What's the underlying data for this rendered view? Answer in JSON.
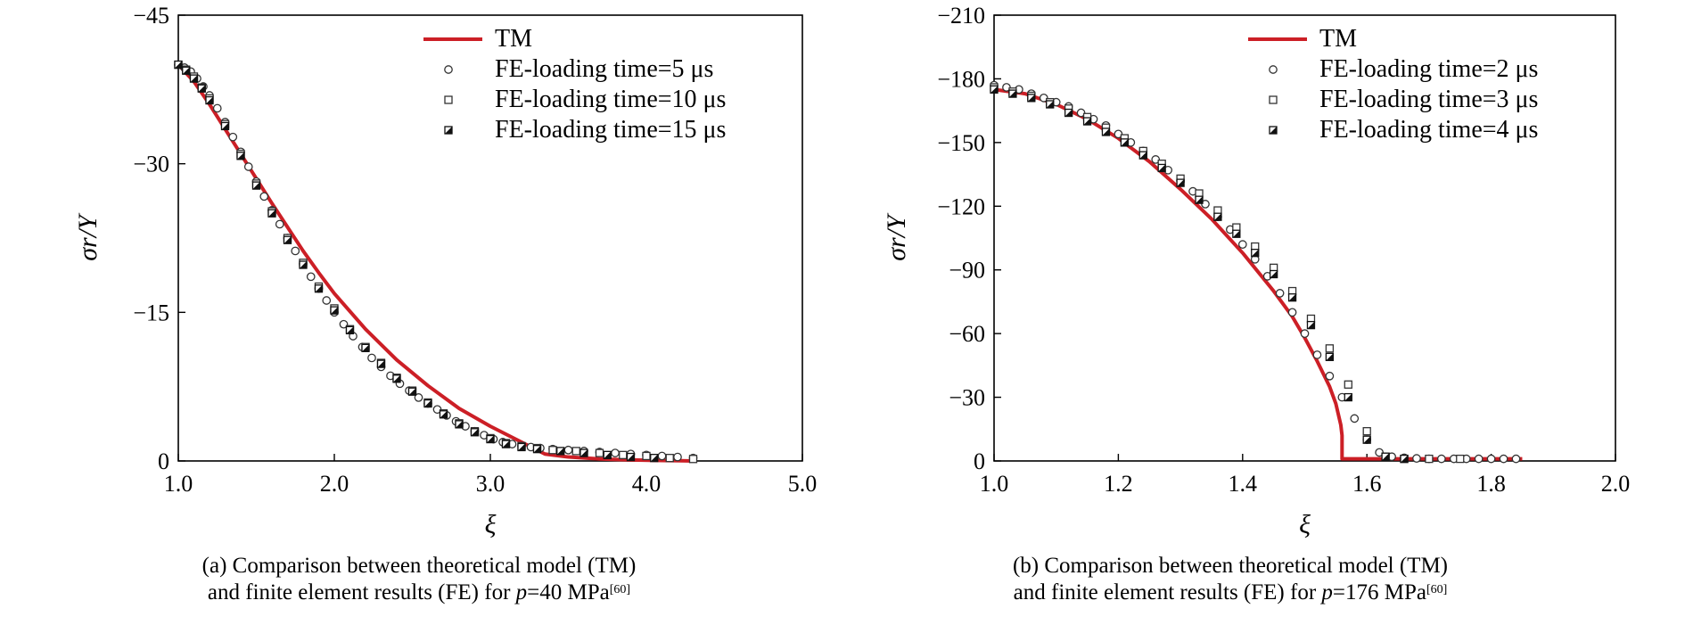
{
  "chart_data": [
    {
      "type": "scatter",
      "panel": "a",
      "ylabel": "σr/Y",
      "xlabel": "ξ",
      "xlim": [
        1.0,
        5.0
      ],
      "ylim": [
        0,
        -45
      ],
      "xticks": [
        "1.0",
        "2.0",
        "3.0",
        "4.0",
        "5.0"
      ],
      "yticks": [
        "0",
        "−15",
        "−30",
        "−45"
      ],
      "legend_position": "top-right",
      "series": [
        {
          "name": "TM",
          "kind": "line",
          "color": "#cc1f26",
          "x": [
            1.0,
            1.1,
            1.2,
            1.3,
            1.4,
            1.5,
            1.6,
            1.7,
            1.8,
            1.9,
            2.0,
            2.2,
            2.4,
            2.6,
            2.8,
            3.0,
            3.2,
            3.35,
            3.5,
            3.7,
            3.9,
            4.1,
            4.3
          ],
          "y": [
            -40,
            -38.3,
            -36.0,
            -33.5,
            -31.0,
            -28.5,
            -26.0,
            -23.6,
            -21.2,
            -19.0,
            -16.9,
            -13.3,
            -10.2,
            -7.6,
            -5.3,
            -3.5,
            -1.9,
            -0.7,
            -0.4,
            -0.2,
            -0.1,
            -0.05,
            0
          ]
        },
        {
          "name": "FE-loading time=5 μs",
          "kind": "markers",
          "marker": "open-circle",
          "x": [
            1.0,
            1.04,
            1.08,
            1.12,
            1.16,
            1.2,
            1.25,
            1.3,
            1.35,
            1.4,
            1.45,
            1.5,
            1.55,
            1.6,
            1.65,
            1.7,
            1.75,
            1.8,
            1.85,
            1.9,
            1.95,
            2.0,
            2.06,
            2.12,
            2.18,
            2.24,
            2.3,
            2.36,
            2.42,
            2.48,
            2.54,
            2.6,
            2.66,
            2.72,
            2.78,
            2.84,
            2.9,
            2.96,
            3.02,
            3.08,
            3.14,
            3.2,
            3.26,
            3.32,
            3.4,
            3.5,
            3.6,
            3.7,
            3.8,
            3.9,
            4.0,
            4.1,
            4.2,
            4.3
          ],
          "y": [
            -40,
            -39.7,
            -39.3,
            -38.6,
            -37.8,
            -36.9,
            -35.6,
            -34.2,
            -32.7,
            -31.2,
            -29.7,
            -28.2,
            -26.7,
            -25.3,
            -23.9,
            -22.5,
            -21.2,
            -19.9,
            -18.6,
            -17.4,
            -16.2,
            -15.0,
            -13.8,
            -12.6,
            -11.5,
            -10.4,
            -9.5,
            -8.6,
            -7.8,
            -7.1,
            -6.4,
            -5.8,
            -5.2,
            -4.6,
            -4.0,
            -3.5,
            -3.0,
            -2.6,
            -2.2,
            -1.9,
            -1.7,
            -1.5,
            -1.4,
            -1.3,
            -1.2,
            -1.1,
            -1.0,
            -0.9,
            -0.8,
            -0.7,
            -0.6,
            -0.5,
            -0.4,
            -0.3
          ]
        },
        {
          "name": "FE-loading time=10 μs",
          "kind": "markers",
          "marker": "open-square",
          "x": [
            1.0,
            1.05,
            1.1,
            1.15,
            1.2,
            1.3,
            1.4,
            1.5,
            1.6,
            1.7,
            1.8,
            1.9,
            2.0,
            2.1,
            2.2,
            2.3,
            2.4,
            2.5,
            2.6,
            2.7,
            2.8,
            2.9,
            3.0,
            3.1,
            3.2,
            3.3,
            3.4,
            3.55,
            3.7,
            3.85,
            4.0,
            4.15,
            4.3
          ],
          "y": [
            -40,
            -39.5,
            -38.8,
            -37.7,
            -36.6,
            -34.0,
            -31.0,
            -28.0,
            -25.2,
            -22.5,
            -20.0,
            -17.6,
            -15.4,
            -13.3,
            -11.5,
            -9.9,
            -8.4,
            -7.1,
            -5.9,
            -4.8,
            -3.8,
            -3.0,
            -2.3,
            -1.8,
            -1.5,
            -1.3,
            -1.1,
            -1.0,
            -0.8,
            -0.6,
            -0.5,
            -0.3,
            -0.2
          ]
        },
        {
          "name": "FE-loading time=15 μs",
          "kind": "markers",
          "marker": "half-filled-square",
          "x": [
            1.0,
            1.05,
            1.1,
            1.15,
            1.2,
            1.3,
            1.4,
            1.5,
            1.6,
            1.7,
            1.8,
            1.9,
            2.0,
            2.1,
            2.2,
            2.3,
            2.4,
            2.5,
            2.6,
            2.7,
            2.8,
            2.9,
            3.0,
            3.1,
            3.2,
            3.3,
            3.45,
            3.6,
            3.75,
            3.9,
            4.05
          ],
          "y": [
            -40,
            -39.4,
            -38.6,
            -37.6,
            -36.4,
            -33.8,
            -30.8,
            -27.8,
            -25.0,
            -22.3,
            -19.8,
            -17.4,
            -15.2,
            -13.2,
            -11.4,
            -9.8,
            -8.3,
            -7.0,
            -5.8,
            -4.7,
            -3.7,
            -2.9,
            -2.2,
            -1.7,
            -1.4,
            -1.2,
            -1.0,
            -0.8,
            -0.6,
            -0.4,
            -0.3
          ]
        }
      ]
    },
    {
      "type": "scatter",
      "panel": "b",
      "ylabel": "σr/Y",
      "xlabel": "ξ",
      "xlim": [
        1.0,
        2.0
      ],
      "ylim": [
        0,
        -210
      ],
      "xticks": [
        "1.0",
        "1.2",
        "1.4",
        "1.6",
        "1.8",
        "2.0"
      ],
      "yticks": [
        "0",
        "−30",
        "−60",
        "−90",
        "−120",
        "−150",
        "−180",
        "−210"
      ],
      "legend_position": "top-right",
      "series": [
        {
          "name": "TM",
          "kind": "line",
          "color": "#cc1f26",
          "x": [
            1.0,
            1.05,
            1.1,
            1.15,
            1.2,
            1.25,
            1.3,
            1.35,
            1.4,
            1.45,
            1.48,
            1.5,
            1.52,
            1.54,
            1.55,
            1.558,
            1.56,
            1.56,
            1.65,
            1.75,
            1.85
          ],
          "y": [
            -175,
            -173,
            -168,
            -161,
            -152,
            -141,
            -128,
            -114,
            -98,
            -80,
            -68,
            -58,
            -47,
            -35,
            -27,
            -17,
            -12,
            -1,
            -1,
            -1,
            -1
          ]
        },
        {
          "name": "FE-loading time=2 μs",
          "kind": "markers",
          "marker": "open-circle",
          "x": [
            1.0,
            1.02,
            1.04,
            1.06,
            1.08,
            1.1,
            1.12,
            1.14,
            1.16,
            1.18,
            1.2,
            1.22,
            1.24,
            1.26,
            1.28,
            1.3,
            1.32,
            1.34,
            1.36,
            1.38,
            1.4,
            1.42,
            1.44,
            1.46,
            1.48,
            1.5,
            1.52,
            1.54,
            1.56,
            1.58,
            1.6,
            1.62,
            1.64,
            1.66,
            1.68,
            1.7,
            1.72,
            1.74,
            1.76,
            1.78,
            1.8,
            1.82,
            1.84
          ],
          "y": [
            -177,
            -176,
            -175,
            -173,
            -171,
            -169,
            -167,
            -164,
            -161,
            -158,
            -154,
            -150,
            -146,
            -142,
            -137,
            -132,
            -127,
            -121,
            -115,
            -109,
            -102,
            -95,
            -87,
            -79,
            -70,
            -60,
            -50,
            -40,
            -30,
            -20,
            -10,
            -4,
            -2,
            -1.5,
            -1.2,
            -1,
            -1,
            -1,
            -1,
            -1,
            -1,
            -1,
            -1
          ]
        },
        {
          "name": "FE-loading time=3 μs",
          "kind": "markers",
          "marker": "open-square",
          "x": [
            1.0,
            1.03,
            1.06,
            1.09,
            1.12,
            1.15,
            1.18,
            1.21,
            1.24,
            1.27,
            1.3,
            1.33,
            1.36,
            1.39,
            1.42,
            1.45,
            1.48,
            1.51,
            1.54,
            1.57,
            1.6,
            1.63,
            1.66,
            1.7,
            1.75
          ],
          "y": [
            -176,
            -174,
            -172,
            -169,
            -166,
            -162,
            -157,
            -152,
            -146,
            -140,
            -133,
            -126,
            -118,
            -110,
            -101,
            -91,
            -80,
            -67,
            -53,
            -36,
            -14,
            -2,
            -1,
            -1,
            -1
          ]
        },
        {
          "name": "FE-loading time=4 μs",
          "kind": "markers",
          "marker": "half-filled-square",
          "x": [
            1.0,
            1.03,
            1.06,
            1.09,
            1.12,
            1.15,
            1.18,
            1.21,
            1.24,
            1.27,
            1.3,
            1.33,
            1.36,
            1.39,
            1.42,
            1.45,
            1.48,
            1.51,
            1.54,
            1.57,
            1.6,
            1.63,
            1.66
          ],
          "y": [
            -175,
            -173,
            -171,
            -168,
            -164,
            -160,
            -155,
            -150,
            -144,
            -138,
            -131,
            -123,
            -115,
            -107,
            -98,
            -88,
            -77,
            -64,
            -49,
            -30,
            -10,
            -2,
            -1
          ]
        }
      ]
    }
  ],
  "captions": {
    "a": {
      "line1": "(a) Comparison between theoretical model (TM)",
      "line2_pre": "and finite element results (FE) for ",
      "var": "p",
      "line2_post": "=40 MPa",
      "ref": "[60]"
    },
    "b": {
      "line1": "(b) Comparison between theoretical model (TM)",
      "line2_pre": "and finite element results (FE) for ",
      "var": "p",
      "line2_post": "=176 MPa",
      "ref": "[60]"
    }
  }
}
